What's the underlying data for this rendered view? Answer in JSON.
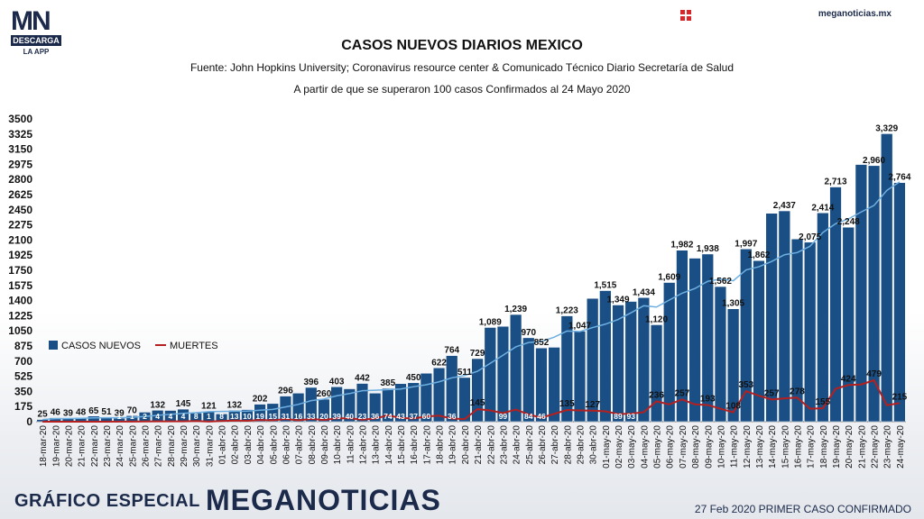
{
  "header": {
    "logo_text": "MN",
    "logo_bar": "DESCARGA",
    "logo_sub": "LA APP",
    "site": "meganoticias.mx"
  },
  "footer": {
    "left": "GRÁFICO ESPECIAL",
    "brand": "MEGANOTICIAS",
    "right": "27 Feb 2020 PRIMER CASO CONFIRMADO"
  },
  "colors": {
    "bar": "#1a4f86",
    "avg_line": "#6fb0e0",
    "deaths_line": "#b3201f",
    "brand": "#1b2a4a"
  },
  "chart_data": {
    "type": "bar",
    "title": "CASOS NUEVOS DIARIOS MEXICO",
    "subtitle": "Fuente: John Hopkins University; Coronavirus resource center & Comunicado Técnico Diario Secretaría de Salud",
    "subtitle2": "A partir de que se superaron 100 casos Confirmados al 24 Mayo 2020",
    "ylim": [
      0,
      3500
    ],
    "yticks": [
      0,
      175,
      350,
      525,
      700,
      875,
      1050,
      1225,
      1400,
      1575,
      1750,
      1925,
      2100,
      2275,
      2450,
      2625,
      2800,
      2975,
      3150,
      3325,
      3500
    ],
    "legend_position": "left-middle",
    "categories": [
      "18-mar-20",
      "19-mar-20",
      "20-mar-20",
      "21-mar-20",
      "22-mar-20",
      "23-mar-20",
      "24-mar-20",
      "25-mar-20",
      "26-mar-20",
      "27-mar-20",
      "28-mar-20",
      "29-mar-20",
      "30-mar-20",
      "31-mar-20",
      "01-abr-20",
      "02-abr-20",
      "03-abr-20",
      "04-abr-20",
      "05-abr-20",
      "06-abr-20",
      "07-abr-20",
      "08-abr-20",
      "09-abr-20",
      "10-abr-20",
      "11-abr-20",
      "12-abr-20",
      "13-abr-20",
      "14-abr-20",
      "15-abr-20",
      "16-abr-20",
      "17-abr-20",
      "18-abr-20",
      "19-abr-20",
      "20-abr-20",
      "21-abr-20",
      "22-abr-20",
      "23-abr-20",
      "24-abr-20",
      "25-abr-20",
      "26-abr-20",
      "27-abr-20",
      "28-abr-20",
      "29-abr-20",
      "30-abr-20",
      "01-may-20",
      "02-may-20",
      "03-may-20",
      "04-may-20",
      "05-may-20",
      "06-may-20",
      "07-may-20",
      "08-may-20",
      "09-may-20",
      "10-may-20",
      "11-may-20",
      "12-may-20",
      "13-may-20",
      "14-may-20",
      "15-may-20",
      "16-may-20",
      "17-may-20",
      "18-may-20",
      "19-may-20",
      "20-may-20",
      "21-may-20",
      "22-may-20",
      "23-may-20",
      "24-may-20"
    ],
    "series": [
      {
        "name": "CASOS NUEVOS",
        "values": [
          25,
          46,
          39,
          48,
          65,
          51,
          39,
          70,
          110,
          132,
          130,
          145,
          100,
          121,
          90,
          132,
          140,
          202,
          210,
          296,
          330,
          396,
          260,
          403,
          380,
          442,
          330,
          385,
          440,
          450,
          560,
          622,
          764,
          511,
          729,
          1089,
          1102,
          1239,
          970,
          852,
          860,
          1223,
          1047,
          1425,
          1515,
          1349,
          1390,
          1434,
          1120,
          1609,
          1982,
          1890,
          1938,
          1562,
          1305,
          1997,
          1862,
          2409,
          2437,
          2112,
          2075,
          2414,
          2713,
          2248,
          2973,
          2960,
          3329,
          2764
        ],
        "labels": [
          "25",
          "46",
          "39",
          "48",
          "65",
          "51",
          "39",
          "70",
          "",
          "132",
          "",
          "145",
          "",
          "121",
          "",
          "132",
          "",
          "202",
          "",
          "296",
          "",
          "396",
          "260",
          "403",
          "",
          "442",
          "",
          "385",
          "",
          "450",
          "",
          "622",
          "764",
          "511",
          "729",
          "1,089",
          "",
          "1,239",
          "970",
          "852",
          "",
          "1,223",
          "1,047",
          "",
          "1,515",
          "1,349",
          "",
          "1,434",
          "1,120",
          "1,609",
          "1,982",
          "",
          "1,938",
          "1,562",
          "1,305",
          "1,997",
          "1,862",
          "",
          "2,437",
          "",
          "2,075",
          "2,414",
          "2,713",
          "2,248",
          "",
          "2,960",
          "3,329",
          "2,764"
        ]
      },
      {
        "name": "MUERTES",
        "values": [
          0,
          0,
          0,
          0,
          0,
          0,
          1,
          1,
          2,
          4,
          4,
          4,
          8,
          1,
          8,
          13,
          10,
          19,
          15,
          31,
          16,
          33,
          20,
          39,
          40,
          23,
          36,
          74,
          43,
          37,
          60,
          70,
          36,
          30,
          145,
          130,
          99,
          140,
          84,
          46,
          90,
          135,
          130,
          127,
          120,
          89,
          93,
          110,
          236,
          200,
          257,
          200,
          193,
          150,
          108,
          353,
          300,
          257,
          270,
          278,
          150,
          155,
          380,
          424,
          430,
          479,
          190,
          215
        ],
        "labels": [
          "",
          "",
          "",
          "",
          "",
          "",
          "1",
          "1",
          "2",
          "4",
          "4",
          "4",
          "8",
          "1",
          "8",
          "13",
          "10",
          "19",
          "15",
          "31",
          "16",
          "33",
          "20",
          "39",
          "40",
          "23",
          "36",
          "74",
          "43",
          "37",
          "60",
          "",
          "36",
          "",
          "145",
          "",
          "99",
          "",
          "84",
          "46",
          "",
          "135",
          "",
          "127",
          "",
          "89",
          "93",
          "",
          "236",
          "",
          "257",
          "",
          "193",
          "",
          "108",
          "353",
          "",
          "257",
          "",
          "278",
          "",
          "155",
          "",
          "424",
          "",
          "479",
          "",
          "215"
        ]
      }
    ]
  }
}
